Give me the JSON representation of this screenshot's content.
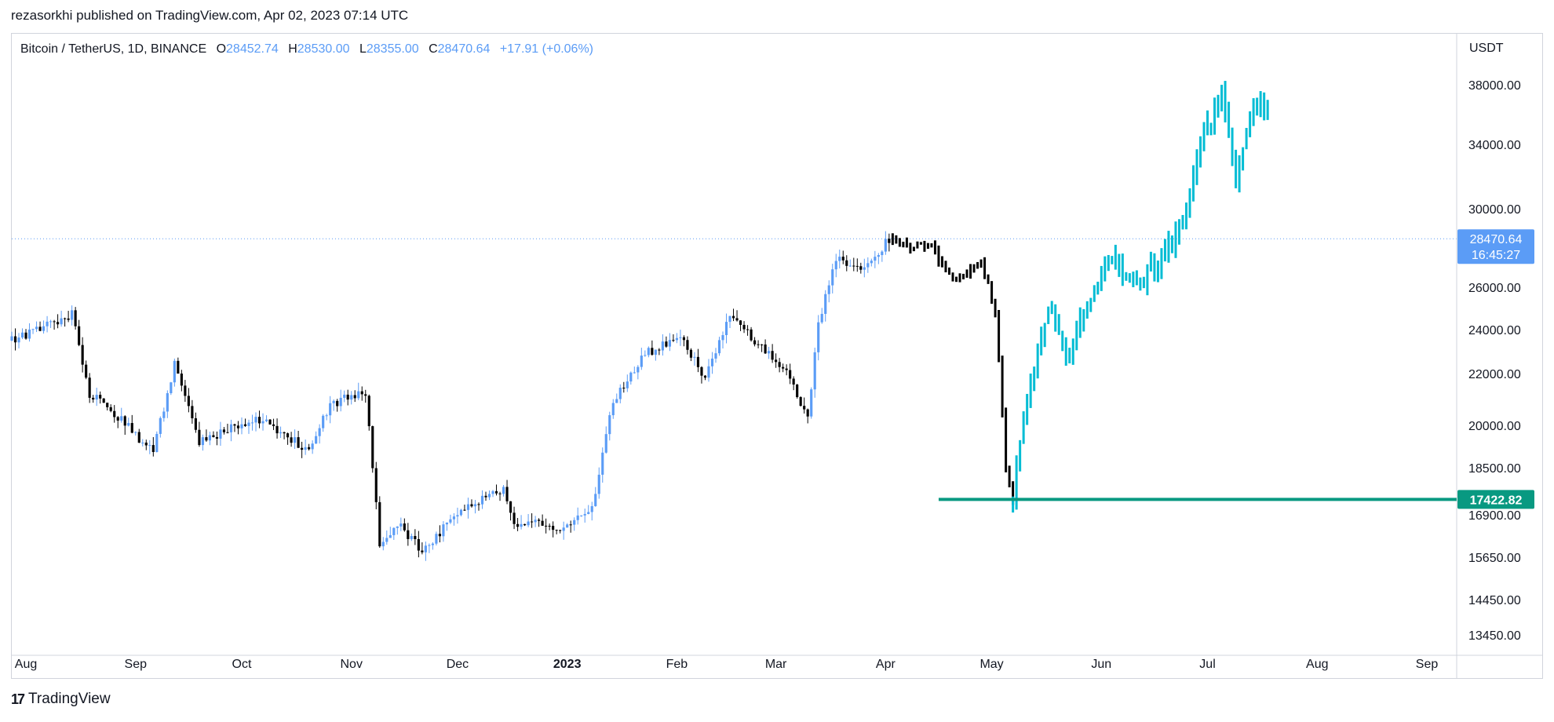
{
  "header": {
    "published": "rezasorkhi published on TradingView.com, Apr 02, 2023 07:14 UTC"
  },
  "legend": {
    "symbol": "Bitcoin / TetherUS, 1D, BINANCE",
    "open_label": "O",
    "open": "28452.74",
    "high_label": "H",
    "high": "28530.00",
    "low_label": "L",
    "low": "28355.00",
    "close_label": "C",
    "close": "28470.64",
    "change": "+17.91 (+0.06%)"
  },
  "brand": {
    "logo": "17",
    "name": "TradingView"
  },
  "chart_data": {
    "type": "candlestick",
    "unit": "USDT",
    "ylim": [
      13000,
      39500
    ],
    "y_ticks": [
      "38000.00",
      "34000.00",
      "30000.00",
      "26000.00",
      "24000.00",
      "22000.00",
      "20000.00",
      "18500.00",
      "16900.00",
      "15650.00",
      "14450.00",
      "13450.00"
    ],
    "x_ticks": [
      "Aug",
      "Sep",
      "Oct",
      "Nov",
      "Dec",
      "2023",
      "Feb",
      "Mar",
      "Apr",
      "May",
      "Jun",
      "Jul",
      "Aug",
      "Sep"
    ],
    "last_price": {
      "value": 28470.64,
      "label": "28470.64",
      "countdown": "16:45:27"
    },
    "horizontal_level": {
      "value": 17422.82,
      "label": "17422.82",
      "from": "2023-04-16",
      "color": "#089981"
    },
    "colors": {
      "up": "#5b9cf6",
      "down": "#000000",
      "projection_black": "#000000",
      "projection_cyan": "#00bcd4",
      "price_label": "#5b9cf6"
    },
    "historical_anchors": [
      [
        "2022-07-28",
        23500
      ],
      [
        "2022-08-14",
        24700
      ],
      [
        "2022-08-19",
        21200
      ],
      [
        "2022-08-26",
        20500
      ],
      [
        "2022-09-06",
        19000
      ],
      [
        "2022-09-12",
        22400
      ],
      [
        "2022-09-19",
        19400
      ],
      [
        "2022-10-05",
        20300
      ],
      [
        "2022-10-20",
        19100
      ],
      [
        "2022-10-26",
        20800
      ],
      [
        "2022-11-05",
        21300
      ],
      [
        "2022-11-09",
        16000
      ],
      [
        "2022-11-14",
        16700
      ],
      [
        "2022-11-21",
        15800
      ],
      [
        "2022-12-01",
        17000
      ],
      [
        "2022-12-14",
        17800
      ],
      [
        "2022-12-17",
        16700
      ],
      [
        "2022-12-30",
        16550
      ],
      [
        "2023-01-08",
        17100
      ],
      [
        "2023-01-14",
        20900
      ],
      [
        "2023-01-23",
        22900
      ],
      [
        "2023-02-02",
        23700
      ],
      [
        "2023-02-09",
        21800
      ],
      [
        "2023-02-16",
        24700
      ],
      [
        "2023-02-25",
        23200
      ],
      [
        "2023-03-03",
        22300
      ],
      [
        "2023-03-10",
        20200
      ],
      [
        "2023-03-13",
        24200
      ],
      [
        "2023-03-18",
        27400
      ],
      [
        "2023-03-27",
        27000
      ],
      [
        "2023-04-02",
        28470
      ]
    ],
    "projection_black_anchors": [
      [
        "2023-04-02",
        28470
      ],
      [
        "2023-04-08",
        28000
      ],
      [
        "2023-04-14",
        28100
      ],
      [
        "2023-04-18",
        26700
      ],
      [
        "2023-04-22",
        26500
      ],
      [
        "2023-04-28",
        27300
      ],
      [
        "2023-05-02",
        24800
      ],
      [
        "2023-05-05",
        18400
      ],
      [
        "2023-05-07",
        17400
      ]
    ],
    "projection_cyan_anchors": [
      [
        "2023-05-07",
        17400
      ],
      [
        "2023-05-10",
        20500
      ],
      [
        "2023-05-17",
        25000
      ],
      [
        "2023-05-22",
        22800
      ],
      [
        "2023-05-30",
        25900
      ],
      [
        "2023-06-03",
        27600
      ],
      [
        "2023-06-12",
        26200
      ],
      [
        "2023-06-22",
        28600
      ],
      [
        "2023-06-25",
        30000
      ],
      [
        "2023-06-29",
        34000
      ],
      [
        "2023-07-05",
        37200
      ],
      [
        "2023-07-09",
        31800
      ],
      [
        "2023-07-14",
        36400
      ],
      [
        "2023-07-18",
        36600
      ]
    ]
  }
}
